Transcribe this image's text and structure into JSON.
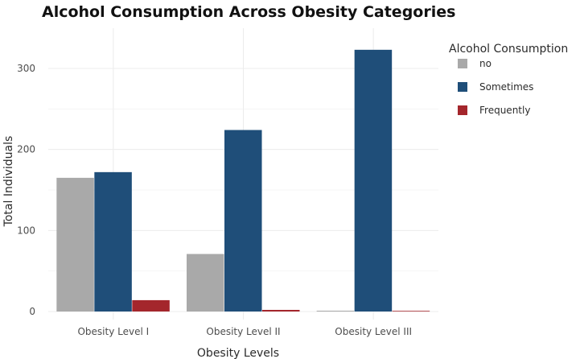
{
  "chart_data": {
    "type": "bar",
    "title": "Alcohol Consumption Across Obesity Categories",
    "xlabel": "Obesity Levels",
    "ylabel": "Total Individuals",
    "categories": [
      "Obesity Level I",
      "Obesity Level II",
      "Obesity Level III"
    ],
    "series": [
      {
        "name": "no",
        "color": "#a9a9a9",
        "values": [
          165,
          71,
          1
        ]
      },
      {
        "name": "Sometimes",
        "color": "#1f4e79",
        "values": [
          172,
          224,
          323
        ]
      },
      {
        "name": "Frequently",
        "color": "#a4262c",
        "values": [
          14,
          2,
          0
        ]
      }
    ],
    "ylim": [
      0,
      340
    ],
    "yticks": [
      0,
      100,
      200,
      300
    ],
    "grid": true,
    "legend": {
      "title": "Alcohol Consumption",
      "position": "top-right"
    }
  }
}
